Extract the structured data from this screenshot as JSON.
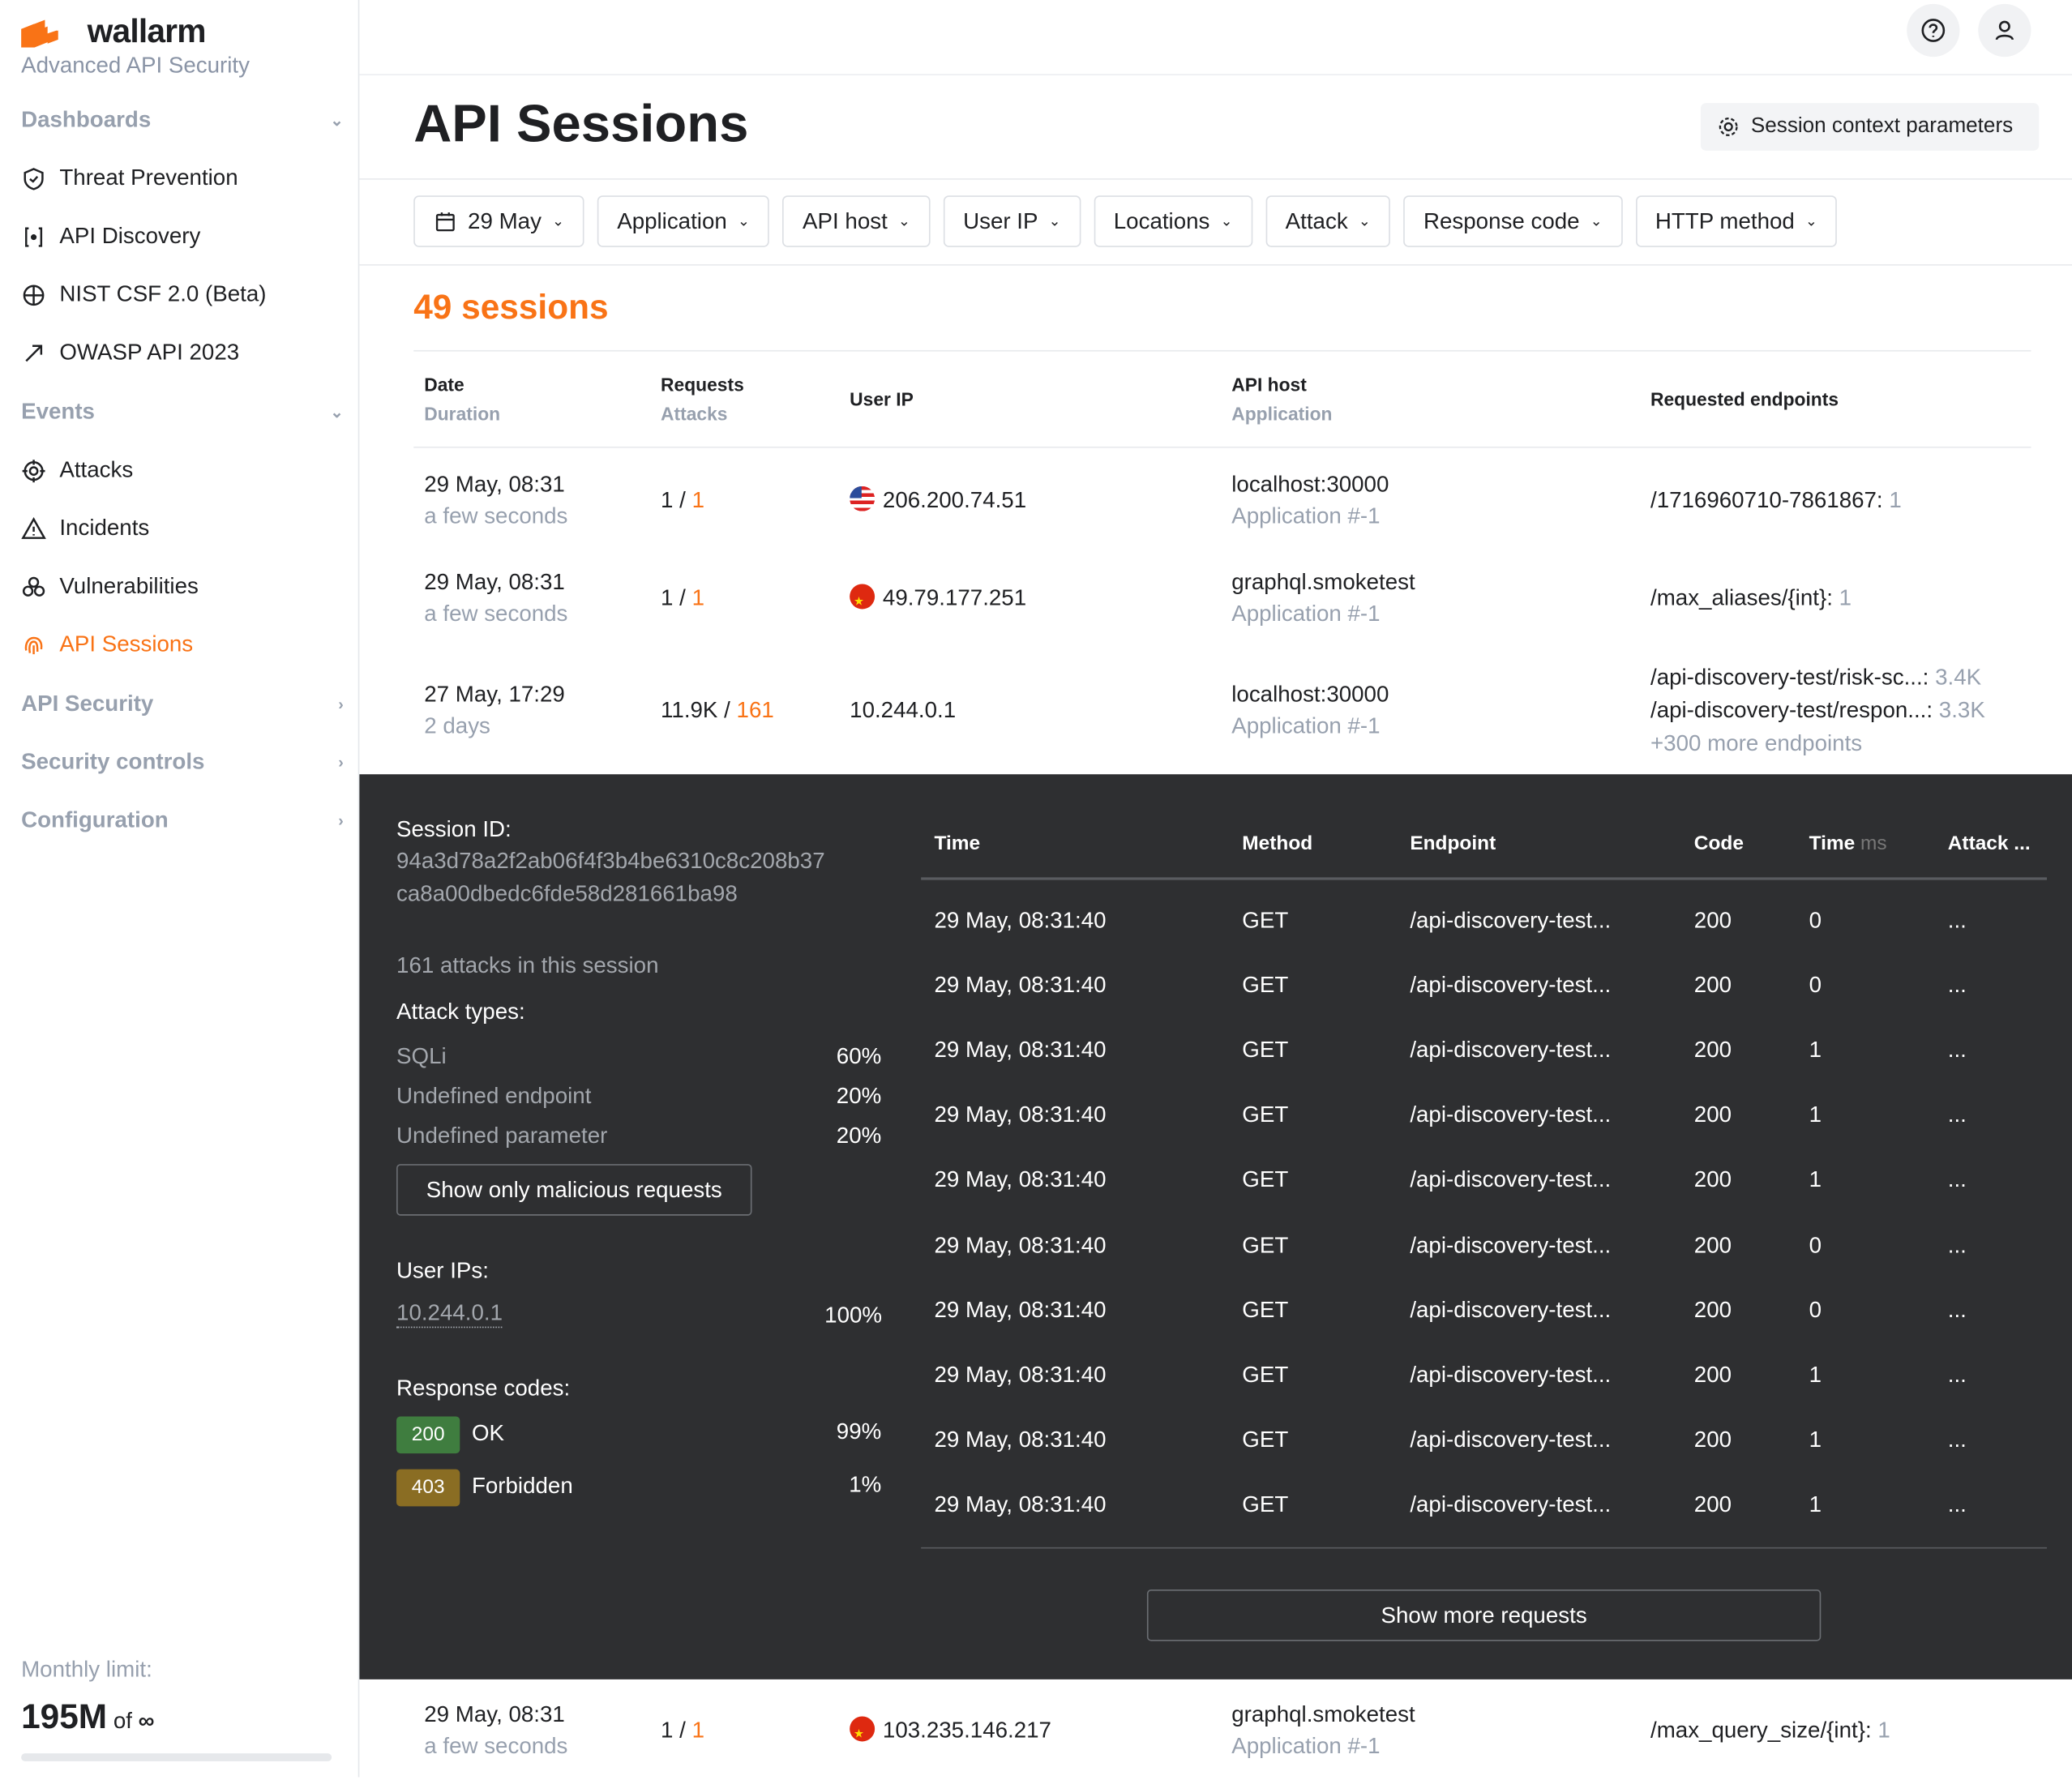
{
  "sidebar": {
    "brand": "wallarm",
    "tagline": "Advanced API Security",
    "sections": [
      {
        "label": "Dashboards",
        "items": [
          {
            "label": "Threat Prevention",
            "icon": "shield-icon"
          },
          {
            "label": "API Discovery",
            "icon": "api-discovery-icon"
          },
          {
            "label": "NIST CSF 2.0 (Beta)",
            "icon": "nist-icon"
          },
          {
            "label": "OWASP API 2023",
            "icon": "owasp-icon"
          }
        ]
      },
      {
        "label": "Events",
        "items": [
          {
            "label": "Attacks",
            "icon": "target-icon"
          },
          {
            "label": "Incidents",
            "icon": "warning-icon"
          },
          {
            "label": "Vulnerabilities",
            "icon": "biohazard-icon"
          },
          {
            "label": "API Sessions",
            "icon": "fingerprint-icon",
            "active": true
          }
        ]
      },
      {
        "label": "API Security"
      },
      {
        "label": "Security controls"
      },
      {
        "label": "Configuration"
      }
    ],
    "footer": {
      "label": "Monthly limit:",
      "value": "195M",
      "of": "of",
      "limit": "∞",
      "usage_fraction": 0
    }
  },
  "header": {
    "title": "API Sessions",
    "context_button": "Session context parameters"
  },
  "filters": [
    "29 May",
    "Application",
    "API host",
    "User IP",
    "Locations",
    "Attack",
    "Response code",
    "HTTP method"
  ],
  "summary": {
    "count": "49 sessions"
  },
  "table": {
    "headers": [
      {
        "main": "Date",
        "sub": "Duration"
      },
      {
        "main": "Requests",
        "sub": "Attacks"
      },
      {
        "main": "User IP",
        "sub": ""
      },
      {
        "main": "API host",
        "sub": "Application"
      },
      {
        "main": "Requested endpoints",
        "sub": ""
      }
    ],
    "rows": [
      {
        "date": "29 May, 08:31",
        "duration": "a few seconds",
        "requests": "1",
        "attacks": "1",
        "flag": "us",
        "ip": "206.200.74.51",
        "host": "localhost:30000",
        "app": "Application #-1",
        "endpoints": [
          {
            "path": "/1716960710-7861867:",
            "count": "1"
          }
        ]
      },
      {
        "date": "29 May, 08:31",
        "duration": "a few seconds",
        "requests": "1",
        "attacks": "1",
        "flag": "cn",
        "ip": "49.79.177.251",
        "host": "graphql.smoketest",
        "app": "Application #-1",
        "endpoints": [
          {
            "path": "/max_aliases/{int}:",
            "count": "1"
          }
        ]
      },
      {
        "date": "27 May, 17:29",
        "duration": "2 days",
        "requests": "11.9K",
        "attacks": "161",
        "flag": "",
        "ip": "10.244.0.1",
        "host": "localhost:30000",
        "app": "Application #-1",
        "endpoints": [
          {
            "path": "/api-discovery-test/risk-sc...:",
            "count": "3.4K"
          },
          {
            "path": "/api-discovery-test/respon...:",
            "count": "3.3K"
          }
        ],
        "more": "+300 more endpoints"
      },
      {
        "date": "29 May, 08:31",
        "duration": "a few seconds",
        "requests": "1",
        "attacks": "1",
        "flag": "cn",
        "ip": "103.235.146.217",
        "host": "graphql.smoketest",
        "app": "Application #-1",
        "endpoints": [
          {
            "path": "/max_query_size/{int}:",
            "count": "1"
          }
        ]
      }
    ]
  },
  "details": {
    "session_label": "Session ID:",
    "session_id_1": "94a3d78a2f2ab06f4f3b4be6310c8c208b37",
    "session_id_2": "ca8a00dbedc6fde58d281661ba98",
    "attacks_summary": "161 attacks in this session",
    "attack_types_label": "Attack types:",
    "attack_types": [
      {
        "name": "SQLi",
        "pct": "60%"
      },
      {
        "name": "Undefined endpoint",
        "pct": "20%"
      },
      {
        "name": "Undefined parameter",
        "pct": "20%"
      }
    ],
    "malicious_button": "Show only malicious requests",
    "user_ips_label": "User IPs:",
    "user_ips": [
      {
        "ip": "10.244.0.1",
        "pct": "100%"
      }
    ],
    "response_codes_label": "Response codes:",
    "response_codes": [
      {
        "code": "200",
        "text": "OK",
        "pct": "99%",
        "color": "#3f7d3f"
      },
      {
        "code": "403",
        "text": "Forbidden",
        "pct": "1%",
        "color": "#8a6d23"
      }
    ],
    "requests_headers": {
      "time": "Time",
      "method": "Method",
      "endpoint": "Endpoint",
      "code": "Code",
      "duration": "Time",
      "duration_unit": "ms",
      "attack": "Attack ..."
    },
    "requests": [
      {
        "time": "29 May, 08:31:40",
        "method": "GET",
        "endpoint": "/api-discovery-test...",
        "code": "200",
        "ms": "0",
        "attack": "..."
      },
      {
        "time": "29 May, 08:31:40",
        "method": "GET",
        "endpoint": "/api-discovery-test...",
        "code": "200",
        "ms": "0",
        "attack": "..."
      },
      {
        "time": "29 May, 08:31:40",
        "method": "GET",
        "endpoint": "/api-discovery-test...",
        "code": "200",
        "ms": "1",
        "attack": "..."
      },
      {
        "time": "29 May, 08:31:40",
        "method": "GET",
        "endpoint": "/api-discovery-test...",
        "code": "200",
        "ms": "1",
        "attack": "..."
      },
      {
        "time": "29 May, 08:31:40",
        "method": "GET",
        "endpoint": "/api-discovery-test...",
        "code": "200",
        "ms": "1",
        "attack": "..."
      },
      {
        "time": "29 May, 08:31:40",
        "method": "GET",
        "endpoint": "/api-discovery-test...",
        "code": "200",
        "ms": "0",
        "attack": "..."
      },
      {
        "time": "29 May, 08:31:40",
        "method": "GET",
        "endpoint": "/api-discovery-test...",
        "code": "200",
        "ms": "0",
        "attack": "..."
      },
      {
        "time": "29 May, 08:31:40",
        "method": "GET",
        "endpoint": "/api-discovery-test...",
        "code": "200",
        "ms": "1",
        "attack": "..."
      },
      {
        "time": "29 May, 08:31:40",
        "method": "GET",
        "endpoint": "/api-discovery-test...",
        "code": "200",
        "ms": "1",
        "attack": "..."
      },
      {
        "time": "29 May, 08:31:40",
        "method": "GET",
        "endpoint": "/api-discovery-test...",
        "code": "200",
        "ms": "1",
        "attack": "..."
      }
    ],
    "more_button": "Show more requests"
  },
  "colors": {
    "accent": "#f97316",
    "panel": "#2e2f31"
  }
}
